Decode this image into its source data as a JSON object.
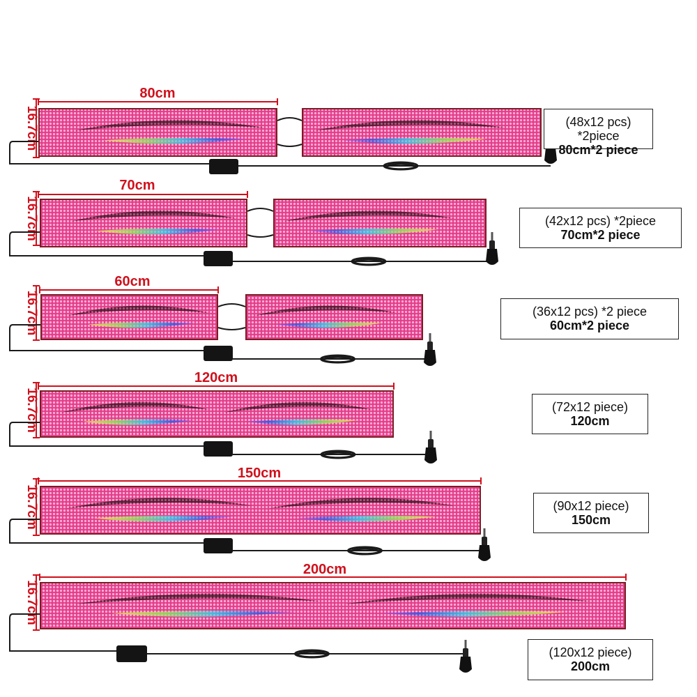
{
  "rows": [
    {
      "width_label": "80cm",
      "height_label": "16.7cm",
      "panels": 2,
      "info_line1": "(48x12 pcs) *2piece",
      "info_line2": "80cm*2 piece"
    },
    {
      "width_label": "70cm",
      "height_label": "16.7cm",
      "panels": 2,
      "info_line1": "(42x12 pcs) *2piece",
      "info_line2": "70cm*2 piece"
    },
    {
      "width_label": "60cm",
      "height_label": "16.7cm",
      "panels": 2,
      "info_line1": "(36x12 pcs) *2 piece",
      "info_line2": "60cm*2 piece"
    },
    {
      "width_label": "120cm",
      "height_label": "16.7cm",
      "panels": 1,
      "info_line1": "(72x12 piece)",
      "info_line2": "120cm"
    },
    {
      "width_label": "150cm",
      "height_label": "16.7cm",
      "panels": 1,
      "info_line1": "(90x12 piece)",
      "info_line2": "150cm"
    },
    {
      "width_label": "200cm",
      "height_label": "16.7cm",
      "panels": 1,
      "info_line1": "(120x12 piece)",
      "info_line2": "200cm"
    }
  ],
  "colors": {
    "dimension": "#d0101c",
    "panel_base": "#e23f8a",
    "panel_frame": "#7a1c24",
    "cable": "#1a1a1a"
  }
}
